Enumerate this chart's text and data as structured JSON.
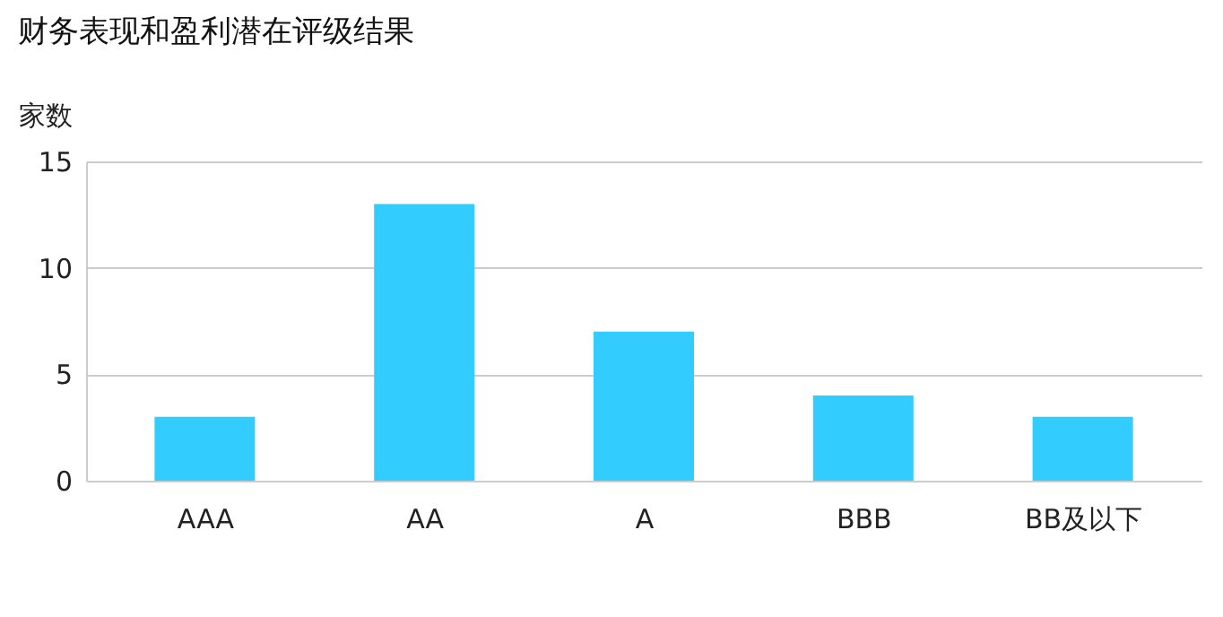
{
  "chart_data": {
    "type": "bar",
    "title": "财务表现和盈利潜在评级结果",
    "ylabel": "家数",
    "categories": [
      "AAA",
      "AA",
      "A",
      "BBB",
      "BB及以下"
    ],
    "values": [
      3,
      13,
      7,
      4,
      3
    ],
    "color": "#33ccff",
    "ylim": [
      0,
      15
    ],
    "yticks": [
      0,
      5,
      10,
      15
    ],
    "grid": "y"
  }
}
